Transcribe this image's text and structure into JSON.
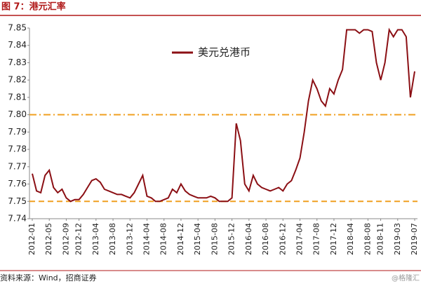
{
  "header": {
    "title": "图 7：港元汇率"
  },
  "chart_data": {
    "type": "line",
    "categories": [
      "2012-01",
      null,
      null,
      null,
      "2012-05",
      null,
      null,
      null,
      "2012-09",
      null,
      null,
      "2012-12",
      null,
      null,
      null,
      "2013-04",
      null,
      null,
      null,
      "2013-08",
      null,
      null,
      null,
      "2013-12",
      null,
      null,
      null,
      "2014-04",
      null,
      null,
      null,
      "2014-08",
      null,
      null,
      null,
      "2014-12",
      null,
      null,
      null,
      "2015-04",
      null,
      null,
      null,
      "2015-08",
      null,
      null,
      null,
      "2015-12",
      null,
      null,
      null,
      "2016-04",
      null,
      null,
      null,
      "2016-08",
      null,
      null,
      null,
      "2016-12",
      null,
      null,
      null,
      "2017-04",
      null,
      null,
      null,
      "2017-08",
      null,
      null,
      null,
      "2017-12",
      null,
      null,
      null,
      "2018-04",
      null,
      null,
      null,
      "2018-08",
      null,
      null,
      "2018-11",
      null,
      null,
      null,
      "2019-03",
      null,
      null,
      null,
      "2019-07"
    ],
    "series": [
      {
        "name": "美元兑港币",
        "color": "#8b0f14",
        "values": [
          7.766,
          7.756,
          7.755,
          7.765,
          7.768,
          7.758,
          7.755,
          7.757,
          7.752,
          7.75,
          7.751,
          7.751,
          7.754,
          7.758,
          7.762,
          7.763,
          7.761,
          7.757,
          7.756,
          7.755,
          7.754,
          7.754,
          7.753,
          7.752,
          7.755,
          7.76,
          7.765,
          7.753,
          7.752,
          7.75,
          7.75,
          7.751,
          7.752,
          7.757,
          7.755,
          7.76,
          7.756,
          7.754,
          7.753,
          7.752,
          7.752,
          7.752,
          7.753,
          7.752,
          7.75,
          7.75,
          7.75,
          7.752,
          7.795,
          7.785,
          7.76,
          7.756,
          7.765,
          7.76,
          7.758,
          7.757,
          7.756,
          7.757,
          7.758,
          7.756,
          7.76,
          7.762,
          7.768,
          7.775,
          7.79,
          7.808,
          7.82,
          7.815,
          7.808,
          7.805,
          7.815,
          7.812,
          7.82,
          7.826,
          7.849,
          7.849,
          7.849,
          7.847,
          7.849,
          7.849,
          7.848,
          7.83,
          7.82,
          7.83,
          7.849,
          7.845,
          7.849,
          7.849,
          7.845,
          7.81,
          7.825
        ]
      }
    ],
    "ylim": [
      7.74,
      7.85
    ],
    "yticks": [
      7.74,
      7.75,
      7.76,
      7.77,
      7.78,
      7.79,
      {
        "value": 7.8,
        "label": "7.80"
      },
      7.81,
      7.82,
      7.83,
      7.84,
      7.85
    ],
    "hlines": [
      {
        "value": 7.8,
        "style": "dashdot"
      },
      {
        "value": 7.75,
        "style": "dash"
      }
    ],
    "hline_color": "#f0a020",
    "legend": "top"
  },
  "footer": {
    "source": "资料来源：Wind，招商证券",
    "watermark": "@格隆汇"
  }
}
